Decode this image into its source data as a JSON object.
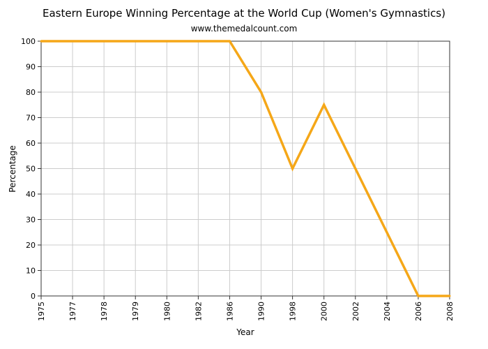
{
  "chart_data": {
    "type": "line",
    "title": "Eastern Europe Winning Percentage at the World Cup (Women's Gymnastics)",
    "subtitle": "www.themedalcount.com",
    "xlabel": "Year",
    "ylabel": "Percentage",
    "categories": [
      "1975",
      "1977",
      "1978",
      "1979",
      "1980",
      "1982",
      "1986",
      "1990",
      "1998",
      "2000",
      "2002",
      "2004",
      "2006",
      "2008"
    ],
    "y_ticks": [
      "0",
      "10",
      "20",
      "30",
      "40",
      "50",
      "60",
      "70",
      "80",
      "90",
      "100"
    ],
    "ylim": [
      0,
      100
    ],
    "grid": true,
    "series": [
      {
        "name": "Eastern Europe Winning Percentage",
        "color": "#f5a718",
        "values": [
          100,
          100,
          100,
          100,
          100,
          100,
          100,
          80,
          50,
          75,
          50,
          25,
          0,
          0
        ]
      }
    ]
  }
}
